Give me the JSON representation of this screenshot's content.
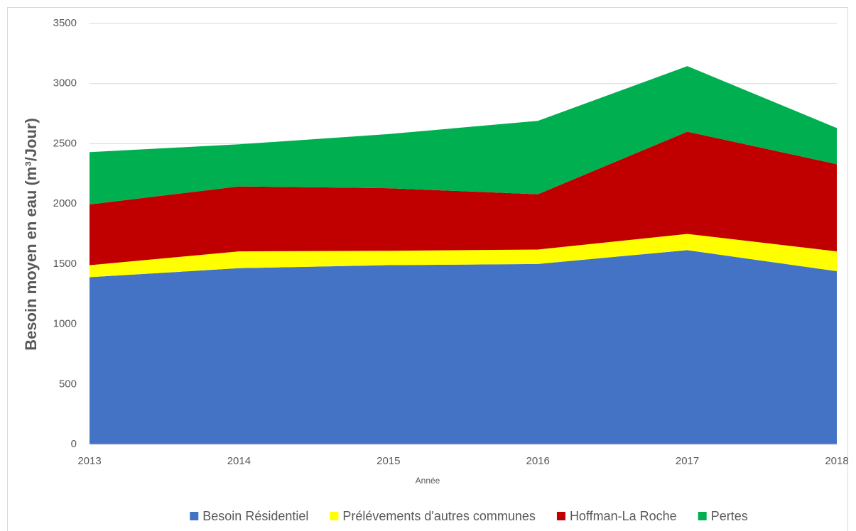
{
  "chart_data": {
    "type": "stacked_area",
    "x_label": "Année",
    "y_label": "Besoin moyen en eau (m³/Jour)",
    "x": [
      2013,
      2014,
      2015,
      2016,
      2017,
      2018
    ],
    "xlim": [
      2013,
      2018
    ],
    "xticks": [
      2013,
      2014,
      2015,
      2016,
      2017,
      2018
    ],
    "ylim": [
      0,
      3500
    ],
    "yticks": [
      0,
      500,
      1000,
      1500,
      2000,
      2500,
      3000,
      3500
    ],
    "grid": true,
    "legend": "bottom",
    "series": [
      {
        "name": "Besoin Résidentiel",
        "color": "#4472c4",
        "values": [
          1390,
          1465,
          1490,
          1500,
          1615,
          1440
        ]
      },
      {
        "name": "Prélévements d'autres communes",
        "color": "#ffff00",
        "values": [
          100,
          140,
          120,
          120,
          135,
          165
        ]
      },
      {
        "name": "Hoffman-La Roche",
        "color": "#c00000",
        "values": [
          505,
          540,
          520,
          460,
          850,
          725
        ]
      },
      {
        "name": "Pertes",
        "color": "#00b050",
        "values": [
          435,
          350,
          450,
          610,
          545,
          300
        ]
      }
    ]
  }
}
